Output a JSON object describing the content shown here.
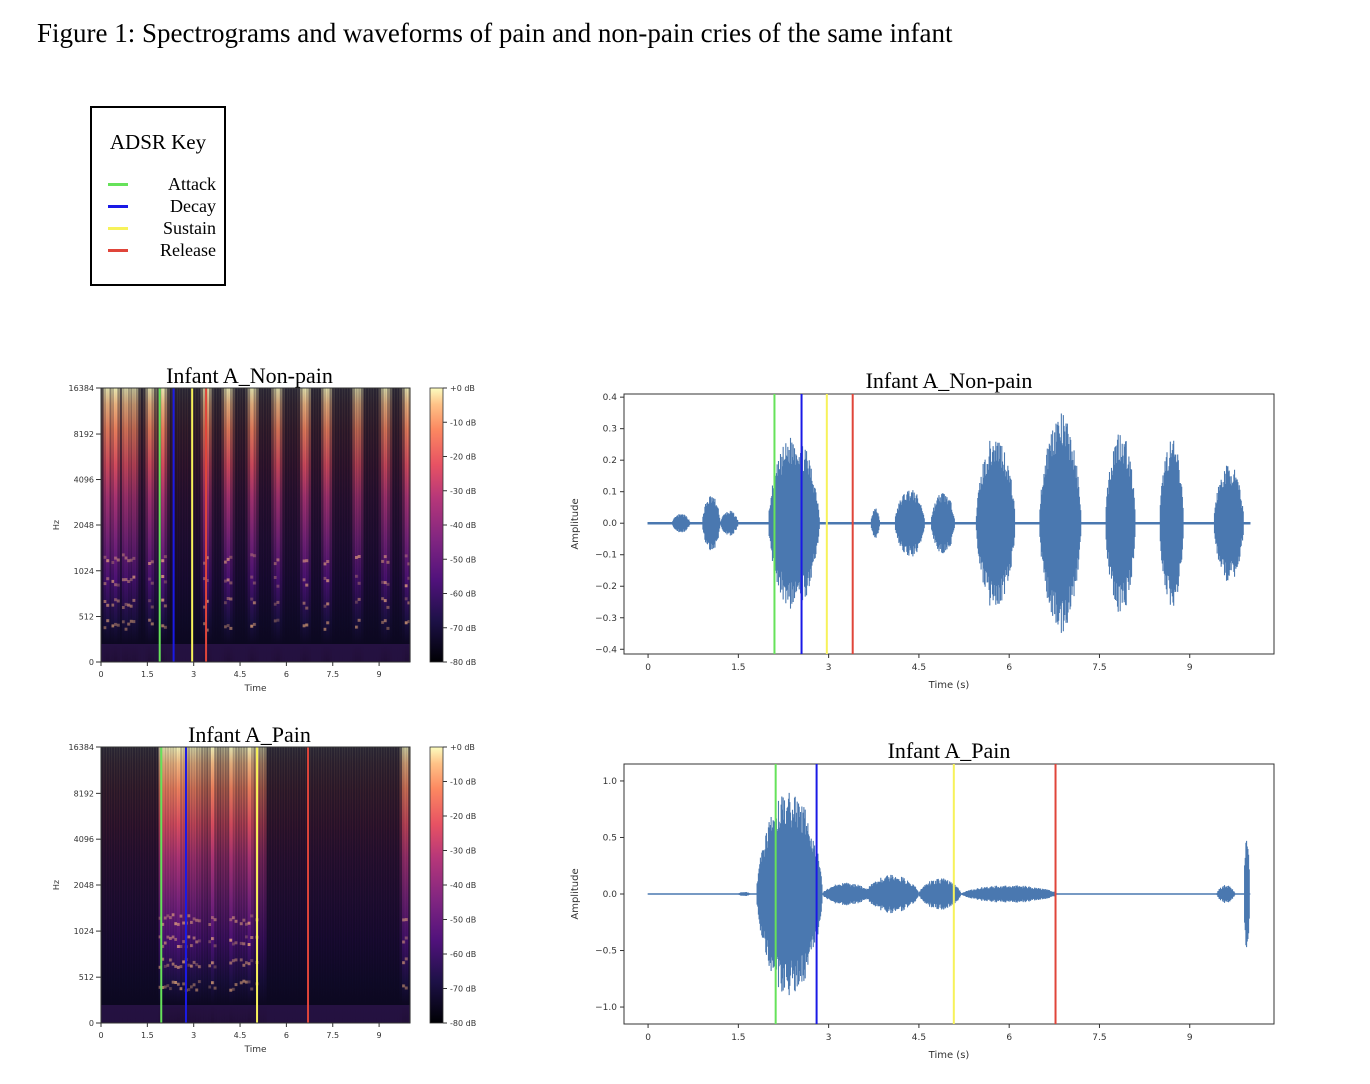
{
  "figure_title": "Figure 1: Spectrograms and waveforms of pain and non-pain cries of the same infant",
  "legend": {
    "title": "ADSR Key",
    "items": [
      {
        "label": "Attack",
        "color": "#66e25a"
      },
      {
        "label": "Decay",
        "color": "#1a1ae6"
      },
      {
        "label": "Sustain",
        "color": "#f7f25a"
      },
      {
        "label": "Release",
        "color": "#e0453a"
      }
    ]
  },
  "chart_data": [
    {
      "type": "heatmap",
      "panel": "spectrogram-nonpain",
      "title": "Infant A_Non-pain",
      "xlabel": "Time",
      "ylabel": "Hz",
      "x_ticks": [
        "0",
        "1.5",
        "3",
        "4.5",
        "6",
        "7.5",
        "9"
      ],
      "y_ticks": [
        "0",
        "512",
        "1024",
        "2048",
        "4096",
        "8192",
        "16384"
      ],
      "colorbar_ticks": [
        "+0 dB",
        "-10 dB",
        "-20 dB",
        "-30 dB",
        "-40 dB",
        "-50 dB",
        "-60 dB",
        "-70 dB",
        "-80 dB"
      ],
      "xlim": [
        0,
        10.0
      ],
      "ylim": [
        0,
        16384
      ],
      "markers": [
        {
          "phase": "Attack",
          "time": 1.9
        },
        {
          "phase": "Decay",
          "time": 2.35
        },
        {
          "phase": "Sustain",
          "time": 2.95
        },
        {
          "phase": "Release",
          "time": 3.4
        }
      ],
      "bursts": [
        0.2,
        0.45,
        0.8,
        1.05,
        1.6,
        2.0,
        3.4,
        4.1,
        4.9,
        5.7,
        6.6,
        7.3,
        8.3,
        9.2,
        9.9
      ]
    },
    {
      "type": "line",
      "panel": "waveform-nonpain",
      "title": "Infant A_Non-pain",
      "xlabel": "Time (s)",
      "ylabel": "Amplitude",
      "x_ticks": [
        "0",
        "1.5",
        "3",
        "4.5",
        "6",
        "7.5",
        "9"
      ],
      "y_ticks": [
        "−0.4",
        "−0.3",
        "−0.2",
        "−0.1",
        "0.0",
        "0.1",
        "0.2",
        "0.3",
        "0.4"
      ],
      "xlim": [
        -0.4,
        10.4
      ],
      "ylim": [
        -0.415,
        0.41
      ],
      "markers": [
        {
          "phase": "Attack",
          "time": 2.1
        },
        {
          "phase": "Decay",
          "time": 2.55
        },
        {
          "phase": "Sustain",
          "time": 2.97
        },
        {
          "phase": "Release",
          "time": 3.4
        }
      ],
      "envelope": [
        {
          "start": 0.4,
          "end": 0.7,
          "amp": 0.03
        },
        {
          "start": 0.9,
          "end": 1.2,
          "amp": 0.09
        },
        {
          "start": 1.2,
          "end": 1.5,
          "amp": 0.04
        },
        {
          "start": 2.0,
          "end": 2.85,
          "amp": 0.28
        },
        {
          "start": 3.7,
          "end": 3.85,
          "amp": 0.05
        },
        {
          "start": 4.1,
          "end": 4.6,
          "amp": 0.11
        },
        {
          "start": 4.7,
          "end": 5.1,
          "amp": 0.1
        },
        {
          "start": 5.45,
          "end": 6.1,
          "amp": 0.28
        },
        {
          "start": 6.5,
          "end": 7.2,
          "amp": 0.35
        },
        {
          "start": 7.6,
          "end": 8.1,
          "amp": 0.3
        },
        {
          "start": 8.5,
          "end": 8.9,
          "amp": 0.27
        },
        {
          "start": 9.4,
          "end": 9.9,
          "amp": 0.19
        }
      ]
    },
    {
      "type": "heatmap",
      "panel": "spectrogram-pain",
      "title": "Infant A_Pain",
      "xlabel": "Time",
      "ylabel": "Hz",
      "x_ticks": [
        "0",
        "1.5",
        "3",
        "4.5",
        "6",
        "7.5",
        "9"
      ],
      "y_ticks": [
        "0",
        "512",
        "1024",
        "2048",
        "4096",
        "8192",
        "16384"
      ],
      "colorbar_ticks": [
        "+0 dB",
        "-10 dB",
        "-20 dB",
        "-30 dB",
        "-40 dB",
        "-50 dB",
        "-60 dB",
        "-70 dB",
        "-80 dB"
      ],
      "xlim": [
        0,
        10.0
      ],
      "ylim": [
        0,
        16384
      ],
      "markers": [
        {
          "phase": "Attack",
          "time": 1.95
        },
        {
          "phase": "Decay",
          "time": 2.75
        },
        {
          "phase": "Sustain",
          "time": 5.05
        },
        {
          "phase": "Release",
          "time": 6.7
        }
      ],
      "bursts": [
        2.1,
        2.5,
        3.0,
        3.6,
        4.2,
        4.8,
        9.85
      ]
    },
    {
      "type": "line",
      "panel": "waveform-pain",
      "title": "Infant A_Pain",
      "xlabel": "Time (s)",
      "ylabel": "Amplitude",
      "x_ticks": [
        "0",
        "1.5",
        "3",
        "4.5",
        "6",
        "7.5",
        "9"
      ],
      "y_ticks": [
        "−1.0",
        "−0.5",
        "0.0",
        "0.5",
        "1.0"
      ],
      "xlim": [
        -0.4,
        10.4
      ],
      "ylim": [
        -1.15,
        1.15
      ],
      "markers": [
        {
          "phase": "Attack",
          "time": 2.12
        },
        {
          "phase": "Decay",
          "time": 2.8
        },
        {
          "phase": "Sustain",
          "time": 5.08
        },
        {
          "phase": "Release",
          "time": 6.77
        }
      ],
      "envelope": [
        {
          "start": 1.5,
          "end": 1.7,
          "amp": 0.02
        },
        {
          "start": 1.8,
          "end": 2.9,
          "amp": 0.9
        },
        {
          "start": 2.9,
          "end": 3.7,
          "amp": 0.1
        },
        {
          "start": 3.6,
          "end": 4.5,
          "amp": 0.17
        },
        {
          "start": 4.5,
          "end": 5.2,
          "amp": 0.14
        },
        {
          "start": 5.2,
          "end": 6.8,
          "amp": 0.08
        },
        {
          "start": 9.45,
          "end": 9.75,
          "amp": 0.08
        },
        {
          "start": 9.9,
          "end": 10.0,
          "amp": 0.52
        }
      ]
    }
  ]
}
